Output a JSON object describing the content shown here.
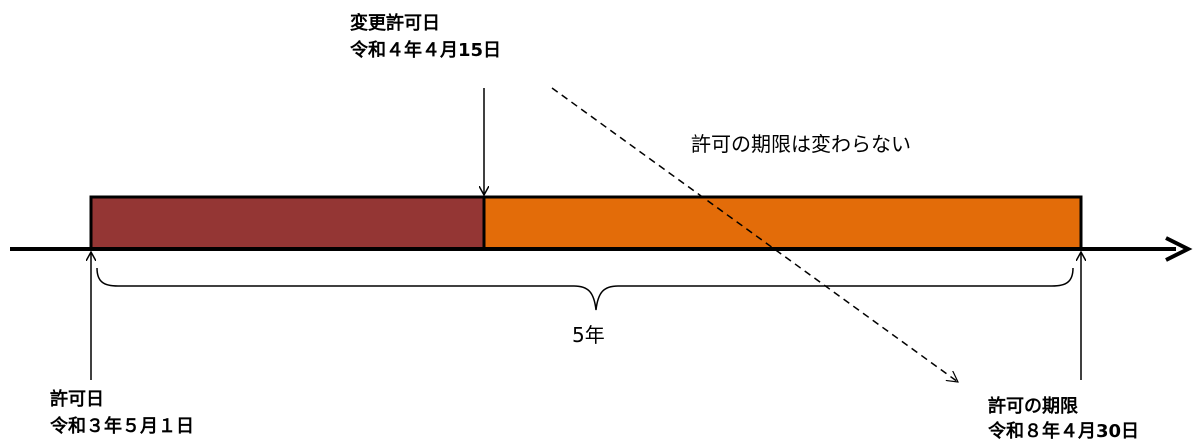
{
  "change_permit": {
    "title": "変更許可日",
    "date": "令和４年４月15日"
  },
  "permit": {
    "title": "許可日",
    "date": "令和３年５月１日"
  },
  "expiry": {
    "title": "許可の期限",
    "date": "令和８年４月30日"
  },
  "note": "許可の期限は変わらない",
  "duration_label": "5年",
  "colors": {
    "before_change": "#943634",
    "after_change": "#E36C09",
    "line": "#000000"
  }
}
